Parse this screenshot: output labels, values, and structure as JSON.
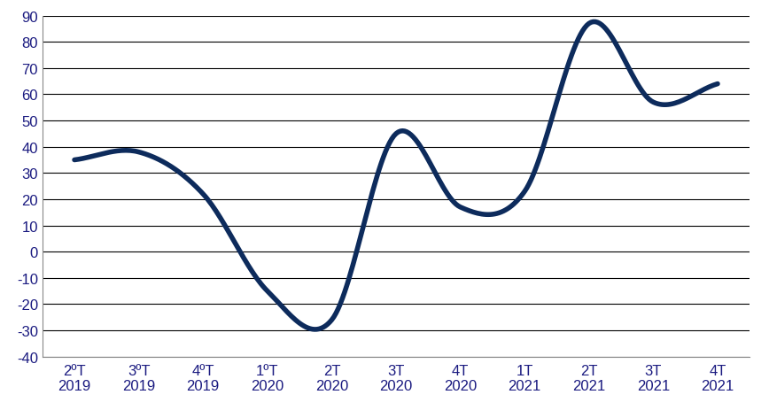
{
  "chart_data": {
    "type": "line",
    "categories": [
      "2ºT\n2019",
      "3ºT\n2019",
      "4ºT\n2019",
      "1ºT\n2020",
      "2T\n2020",
      "3T\n2020",
      "4T\n2020",
      "1T\n2021",
      "2T\n2021",
      "3T\n2021",
      "4T\n2021"
    ],
    "values": [
      35,
      38,
      22,
      -15,
      -26,
      45,
      17,
      23,
      87,
      57,
      64
    ],
    "color": "#0d2b5c",
    "line_style": "solid",
    "ylim": [
      -40,
      90
    ],
    "yticks": [
      -40,
      -30,
      -20,
      -10,
      0,
      10,
      20,
      30,
      40,
      50,
      60,
      70,
      80,
      90
    ],
    "grid": true
  }
}
